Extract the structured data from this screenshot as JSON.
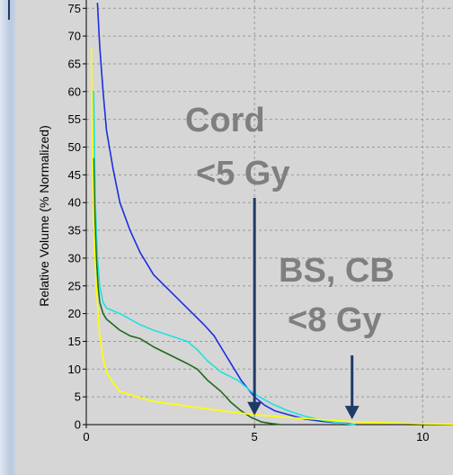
{
  "chart_data": {
    "type": "line",
    "ylabel": "Relative Volume (% Normalized)",
    "xlabel": "",
    "xlim": [
      0,
      10.9
    ],
    "ylim": [
      0,
      76.5
    ],
    "x_ticks": [
      "0",
      "5",
      "10"
    ],
    "y_ticks": [
      "0",
      "5",
      "10",
      "15",
      "20",
      "25",
      "30",
      "35",
      "40",
      "45",
      "50",
      "55",
      "60",
      "65",
      "70",
      "75"
    ],
    "grid": true,
    "colors": {
      "blue": "#1a2fe0",
      "cyan": "#22e0e0",
      "green": "#1e6a1e",
      "yellow": "#ffff00",
      "arrow": "#1f3a66",
      "annotation": "#7f7f7f"
    },
    "series": [
      {
        "color": "#1a2fe0",
        "x": [
          0.33,
          0.4,
          0.5,
          0.6,
          0.8,
          1,
          1.3,
          1.6,
          2,
          2.5,
          3,
          3.5,
          3.8,
          4.2,
          4.6,
          5,
          5.3,
          5.6,
          6,
          6.5,
          7,
          7.3,
          7.5,
          7.8,
          7.9,
          8
        ],
        "y": [
          76,
          68,
          60,
          53,
          46,
          40,
          35,
          31,
          27,
          24,
          21,
          18,
          16,
          12,
          8,
          5,
          3.5,
          2.5,
          1.8,
          1,
          0.6,
          0.4,
          0.3,
          0.2,
          0.05,
          0
        ]
      },
      {
        "color": "#22e0e0",
        "x": [
          0.22,
          0.27,
          0.33,
          0.4,
          0.5,
          0.6,
          0.8,
          1,
          1.3,
          1.6,
          2,
          2.5,
          3,
          3.3,
          3.6,
          4,
          4.5,
          5,
          5.5,
          6,
          6.5,
          7,
          7.5,
          8
        ],
        "y": [
          60,
          40,
          30,
          25,
          22,
          21,
          20.5,
          20,
          19,
          18,
          17,
          16,
          15,
          13.5,
          11.5,
          9.5,
          8,
          5.5,
          3.8,
          2.5,
          1.5,
          0.8,
          0.3,
          0
        ]
      },
      {
        "color": "#1e6a1e",
        "x": [
          0.22,
          0.25,
          0.3,
          0.35,
          0.4,
          0.5,
          0.6,
          0.8,
          1,
          1.3,
          1.6,
          2,
          2.5,
          3,
          3.3,
          3.6,
          4,
          4.3,
          4.6,
          4.9,
          5.2,
          5.5,
          5.8
        ],
        "y": [
          48,
          38,
          30,
          25,
          22,
          20,
          19,
          18,
          17,
          16,
          15.5,
          14,
          12.5,
          11,
          10,
          8,
          6,
          4,
          2.5,
          1.3,
          0.5,
          0.2,
          0
        ]
      },
      {
        "color": "#ffff00",
        "x": [
          0.15,
          0.18,
          0.22,
          0.26,
          0.3,
          0.35,
          0.4,
          0.5,
          0.6,
          0.8,
          1,
          1.5,
          2,
          3,
          4,
          5,
          6,
          7,
          8,
          9,
          10,
          10.9
        ],
        "y": [
          68,
          50,
          37,
          30,
          25,
          20,
          16,
          12,
          9.5,
          7.5,
          6,
          5,
          4.2,
          3.3,
          2.5,
          1.8,
          1.3,
          0.9,
          0.5,
          0.3,
          0.15,
          0.1
        ]
      }
    ],
    "annotations": [
      {
        "name": "cord",
        "line1": "Cord",
        "line2": "<5 Gy",
        "arrow_to": [
          5,
          1.5
        ]
      },
      {
        "name": "bs-cb",
        "line1": "BS, CB",
        "line2": "<8 Gy",
        "arrow_to": [
          7.9,
          0.8
        ]
      }
    ]
  }
}
